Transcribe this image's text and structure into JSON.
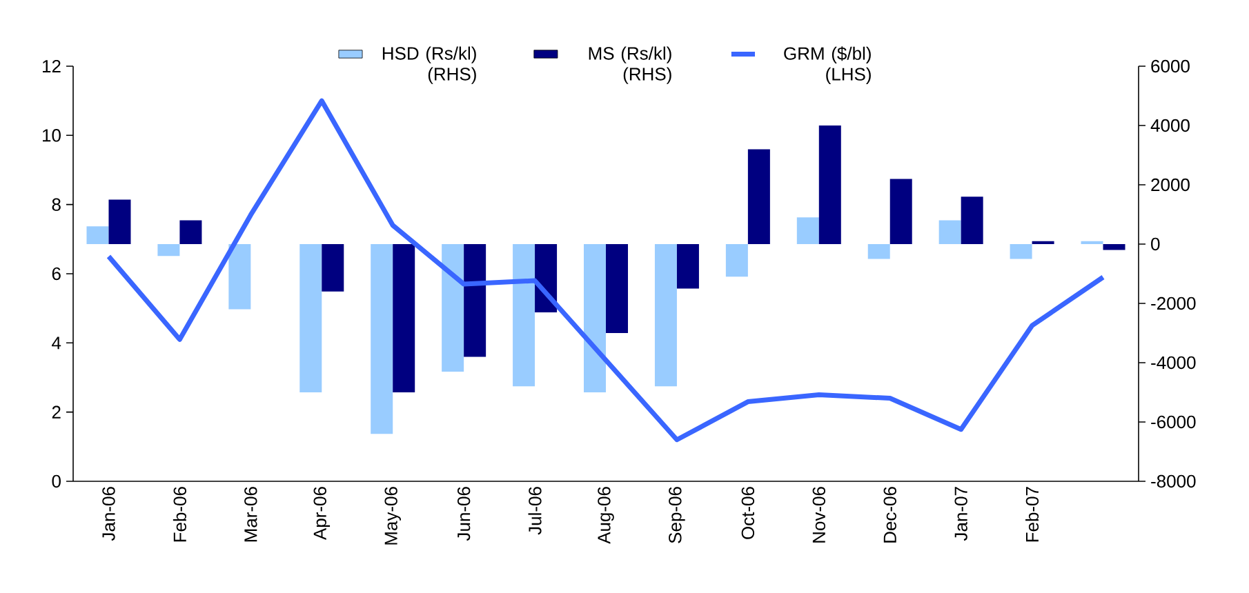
{
  "chart_data": {
    "type": "bar",
    "categories": [
      "Jan-06",
      "Feb-06",
      "Mar-06",
      "Apr-06",
      "May-06",
      "Jun-06",
      "Jul-06",
      "Aug-06",
      "Sep-06",
      "Oct-06",
      "Nov-06",
      "Dec-06",
      "Jan-07",
      "Feb-07",
      null
    ],
    "series": [
      {
        "name": "HSD (Rs/kl) (RHS)",
        "axis": "y2",
        "color": "#99ccff",
        "values": [
          600,
          -400,
          -2200,
          -5000,
          -6400,
          -4300,
          -4800,
          -5000,
          -4800,
          -1100,
          900,
          -500,
          800,
          -500,
          100
        ]
      },
      {
        "name": "MS (Rs/kl) (RHS)",
        "axis": "y2",
        "color": "#000080",
        "values": [
          1500,
          800,
          0,
          -1600,
          -5000,
          -3800,
          -2300,
          -3000,
          -1500,
          3200,
          4000,
          2200,
          1600,
          100,
          -200
        ]
      },
      {
        "name": "GRM ($/bl) (LHS)",
        "type": "line",
        "axis": "y",
        "color": "#3a66ff",
        "values": [
          6.5,
          4.1,
          7.7,
          11.0,
          7.4,
          5.7,
          5.8,
          3.5,
          1.2,
          2.3,
          2.5,
          2.4,
          1.5,
          4.5,
          5.9
        ]
      }
    ],
    "ylim": [
      0,
      12
    ],
    "yticks": [
      0,
      2,
      4,
      6,
      8,
      10,
      12
    ],
    "y2lim": [
      -8000,
      6000
    ],
    "y2ticks": [
      -8000,
      -6000,
      -4000,
      -2000,
      0,
      2000,
      4000,
      6000
    ],
    "legend": "top",
    "grid": false,
    "marker": "none",
    "line_style": "solid"
  }
}
